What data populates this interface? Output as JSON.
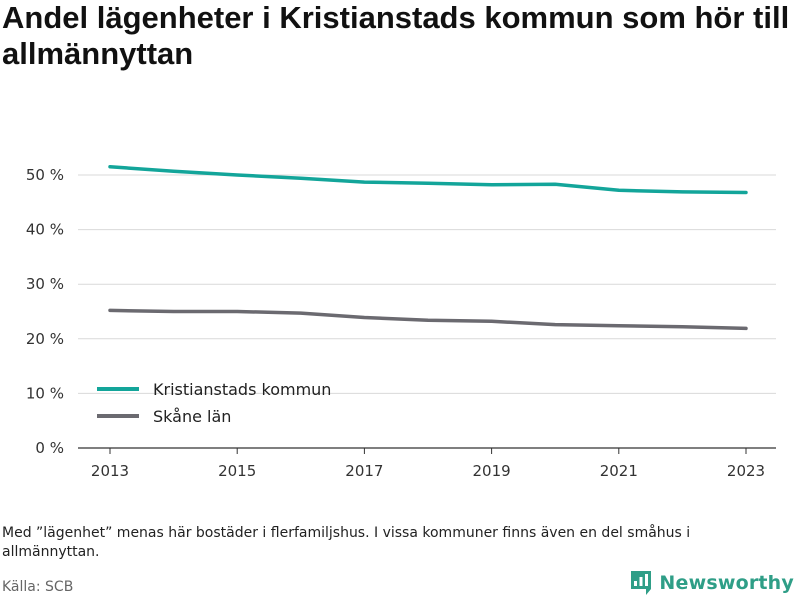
{
  "title": "Andel lägenheter i Kristianstads kommun som hör till allmännyttan",
  "note": "Med ”lägenhet” menas här bostäder i flerfamiljshus. I vissa kommuner finns även en del småhus i allmännyttan.",
  "source": "Källa: SCB",
  "brand": {
    "name": "Newsworthy",
    "icon": "newsworthy-logo-icon",
    "color": "#2f9e87"
  },
  "chart_data": {
    "type": "line",
    "title": "Andel lägenheter i Kristianstads kommun som hör till allmännyttan",
    "x": [
      2013,
      2014,
      2015,
      2016,
      2017,
      2018,
      2019,
      2020,
      2021,
      2022,
      2023
    ],
    "x_ticks": [
      "2013",
      "2015",
      "2017",
      "2019",
      "2021",
      "2023"
    ],
    "y_ticks": [
      {
        "value": 0,
        "label": "0 %"
      },
      {
        "value": 10,
        "label": "10 %"
      },
      {
        "value": 20,
        "label": "20 %"
      },
      {
        "value": 30,
        "label": "30 %"
      },
      {
        "value": 40,
        "label": "40 %"
      },
      {
        "value": 50,
        "label": "50 %"
      }
    ],
    "ylim": [
      0,
      55
    ],
    "xlim": [
      2012.5,
      2023.5
    ],
    "grid": true,
    "legend_position": "bottom-left",
    "series": [
      {
        "name": "Kristianstads kommun",
        "color": "#13a59a",
        "values": [
          51.5,
          50.7,
          50.0,
          49.4,
          48.7,
          48.5,
          48.2,
          48.3,
          47.2,
          46.9,
          46.8
        ]
      },
      {
        "name": "Skåne län",
        "color": "#6b6a70",
        "values": [
          25.2,
          25.0,
          25.0,
          24.7,
          23.9,
          23.4,
          23.2,
          22.6,
          22.4,
          22.2,
          21.9
        ]
      }
    ]
  }
}
